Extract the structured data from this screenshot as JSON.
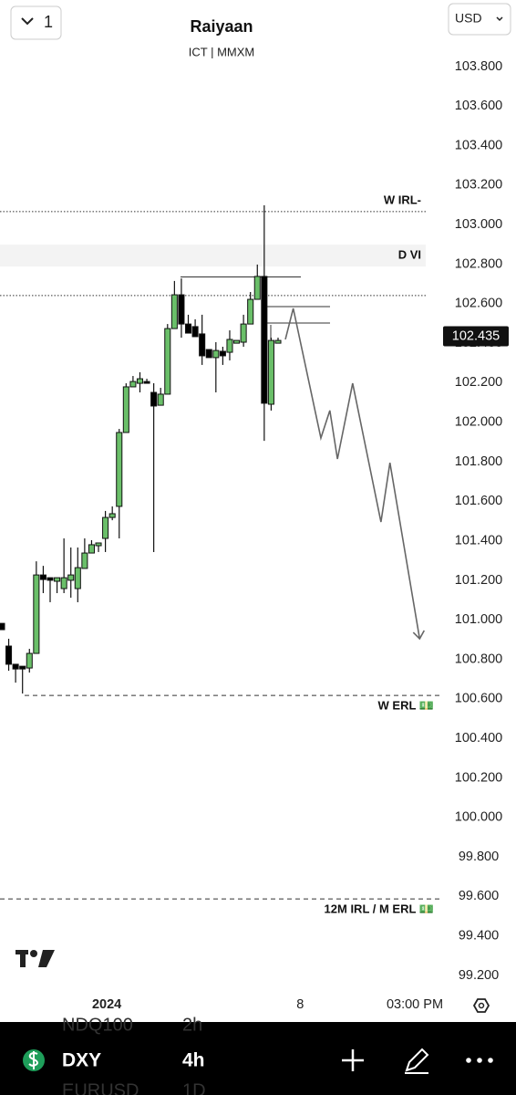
{
  "header": {
    "interval": "1",
    "title": "Raiyaan",
    "subtitle": "ICT | MMXM",
    "currency": "USD"
  },
  "chart_data": {
    "type": "candlestick",
    "open": [
      100.982,
      100.867,
      100.775,
      100.765,
      100.756,
      100.83,
      101.227,
      101.213,
      101.195,
      101.158,
      101.2,
      101.158,
      101.26,
      101.338,
      101.375,
      101.412,
      101.518,
      101.574,
      101.948,
      102.179,
      102.197,
      102.206,
      102.151,
      102.086,
      102.142,
      102.474,
      102.645,
      102.497,
      102.484,
      102.447,
      102.368,
      102.327,
      102.359,
      102.354,
      102.4,
      102.405,
      102.497,
      102.622,
      102.738,
      102.091,
      102.4
    ],
    "high": [
      100.982,
      100.904,
      100.775,
      100.765,
      100.853,
      101.296,
      101.273,
      101.213,
      101.213,
      101.412,
      101.366,
      101.366,
      101.412,
      101.403,
      101.389,
      101.551,
      101.574,
      101.966,
      102.197,
      102.234,
      102.253,
      102.22,
      102.197,
      102.174,
      102.497,
      102.715,
      102.728,
      102.544,
      102.521,
      102.544,
      102.368,
      102.405,
      102.382,
      102.465,
      102.414,
      102.544,
      102.659,
      102.798,
      103.098,
      102.428,
      102.428
    ],
    "low": [
      100.95,
      100.742,
      100.682,
      100.627,
      100.733,
      100.83,
      101.135,
      101.089,
      101.135,
      101.135,
      101.112,
      101.089,
      101.26,
      101.338,
      101.343,
      101.343,
      101.504,
      101.412,
      101.948,
      102.179,
      102.151,
      102.197,
      101.343,
      102.086,
      102.142,
      102.474,
      102.428,
      102.451,
      102.433,
      102.29,
      102.327,
      102.151,
      102.29,
      102.313,
      102.4,
      102.382,
      102.497,
      102.622,
      101.906,
      102.059,
      102.4
    ],
    "close": [
      100.95,
      100.775,
      100.751,
      100.751,
      100.83,
      101.227,
      101.204,
      101.2,
      101.213,
      101.213,
      101.227,
      101.264,
      101.338,
      101.38,
      101.389,
      101.518,
      101.537,
      101.948,
      102.179,
      102.206,
      102.22,
      102.197,
      102.082,
      102.142,
      102.474,
      102.645,
      102.497,
      102.451,
      102.433,
      102.336,
      102.327,
      102.363,
      102.336,
      102.419,
      102.414,
      102.497,
      102.622,
      102.738,
      102.096,
      102.414,
      102.414
    ],
    "up_color": "#6abf69",
    "down_color": "#000000",
    "ylim": [
      99.126,
      104.137
    ],
    "yticks": [
      {
        "value": 103.8,
        "label": "103.800"
      },
      {
        "value": 103.6,
        "label": "103.600"
      },
      {
        "value": 103.4,
        "label": "103.400"
      },
      {
        "value": 103.2,
        "label": "103.200"
      },
      {
        "value": 103.0,
        "label": "103.000"
      },
      {
        "value": 102.8,
        "label": "102.800"
      },
      {
        "value": 102.6,
        "label": "102.600"
      },
      {
        "value": 102.4,
        "label": "102.400"
      },
      {
        "value": 102.2,
        "label": "102.200"
      },
      {
        "value": 102.0,
        "label": "102.000"
      },
      {
        "value": 101.8,
        "label": "101.800"
      },
      {
        "value": 101.6,
        "label": "101.600"
      },
      {
        "value": 101.4,
        "label": "101.400"
      },
      {
        "value": 101.2,
        "label": "101.200"
      },
      {
        "value": 101.0,
        "label": "101.000"
      },
      {
        "value": 100.8,
        "label": "100.800"
      },
      {
        "value": 100.6,
        "label": "100.600"
      },
      {
        "value": 100.4,
        "label": "100.400"
      },
      {
        "value": 100.2,
        "label": "100.200"
      },
      {
        "value": 100.0,
        "label": "100.000"
      },
      {
        "value": 99.8,
        "label": "99.800"
      },
      {
        "value": 99.6,
        "label": "99.600"
      },
      {
        "value": 99.4,
        "label": "99.400"
      },
      {
        "value": 99.2,
        "label": "99.200"
      }
    ],
    "xlim": [
      -0.26,
      63.76
    ],
    "xticks": [
      {
        "value": 15.2,
        "label": "2024"
      },
      {
        "value": 43.2,
        "label": "8"
      },
      {
        "value": 59.8,
        "label": "03:00 PM"
      }
    ],
    "last_price": {
      "value": 102.435,
      "label": "102.435"
    },
    "levels": [
      {
        "label": "W IRL-",
        "value": 103.066,
        "style": "dotted"
      },
      {
        "value": 102.641,
        "style": "dotted"
      },
      {
        "label": "W ERL 💵",
        "value": 100.617,
        "style": "dashed"
      },
      {
        "label": "12M IRL / M ERL 💵",
        "value": 99.587,
        "style": "dashed"
      }
    ],
    "zones": [
      {
        "label": "D VI",
        "from": 102.788,
        "to": 102.899
      }
    ],
    "projection": {
      "x": [
        41.06,
        42.2,
        46.2,
        47.5,
        48.6,
        50.8,
        54.9,
        56.2,
        60.5
      ],
      "values": [
        102.419,
        102.576,
        101.92,
        102.059,
        101.814,
        102.197,
        101.495,
        101.795,
        100.904
      ]
    }
  },
  "footer": {
    "symbol": "DXY",
    "interval": "4h",
    "faded": [
      "NDQ100",
      "2h",
      "EURUSD",
      "1D"
    ]
  }
}
